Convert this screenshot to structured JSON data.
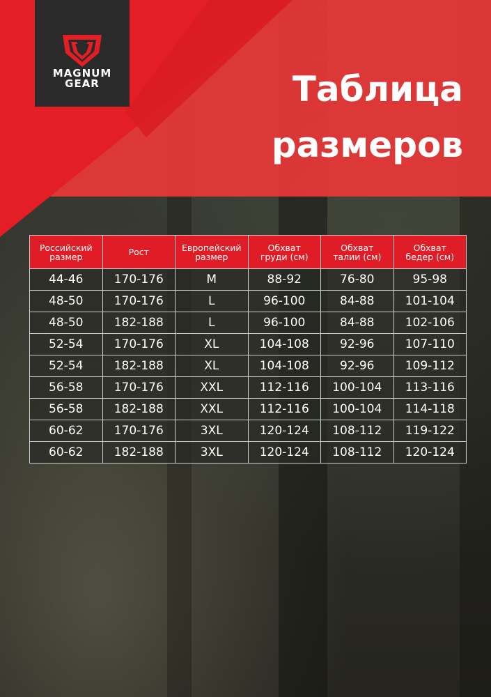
{
  "brand": {
    "name_line1": "MAGNUM",
    "name_line2": "GEAR",
    "color": "#e31e24"
  },
  "title": {
    "line1": "Таблица",
    "line2": "размеров"
  },
  "table": {
    "headers": [
      [
        "Российский",
        "размер"
      ],
      [
        "Рост",
        ""
      ],
      [
        "Европейский",
        "размер"
      ],
      [
        "Обхват",
        "груди (см)"
      ],
      [
        "Обхват",
        "талии (см)"
      ],
      [
        "Обхват",
        "бедер (см)"
      ]
    ],
    "rows": [
      [
        "44-46",
        "170-176",
        "M",
        "88-92",
        "76-80",
        "95-98"
      ],
      [
        "48-50",
        "170-176",
        "L",
        "96-100",
        "84-88",
        "101-104"
      ],
      [
        "48-50",
        "182-188",
        "L",
        "96-100",
        "84-88",
        "102-106"
      ],
      [
        "52-54",
        "170-176",
        "XL",
        "104-108",
        "92-96",
        "107-110"
      ],
      [
        "52-54",
        "182-188",
        "XL",
        "104-108",
        "92-96",
        "109-112"
      ],
      [
        "56-58",
        "170-176",
        "XXL",
        "112-116",
        "100-104",
        "113-116"
      ],
      [
        "56-58",
        "182-188",
        "XXL",
        "112-116",
        "100-104",
        "114-118"
      ],
      [
        "60-62",
        "170-176",
        "3XL",
        "120-124",
        "108-112",
        "119-122"
      ],
      [
        "60-62",
        "182-188",
        "3XL",
        "120-124",
        "108-112",
        "120-124"
      ]
    ]
  }
}
